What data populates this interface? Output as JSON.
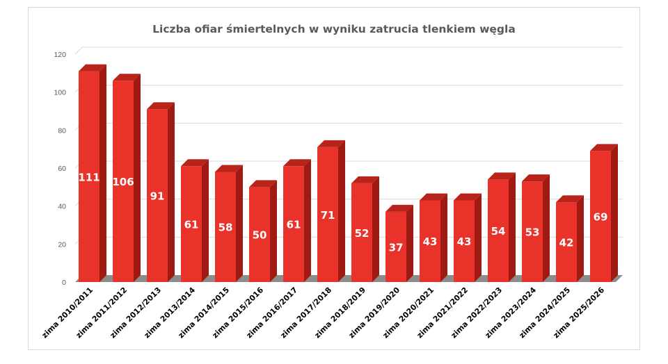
{
  "chart_data": {
    "type": "bar",
    "title": "Liczba ofiar śmiertelnych w wyniku zatrucia tlenkiem węgla",
    "xlabel": "",
    "ylabel": "",
    "ylim": [
      0,
      120
    ],
    "yticks": [
      0,
      20,
      40,
      60,
      80,
      100,
      120
    ],
    "grid": true,
    "style": "3d-column",
    "categories": [
      "zima 2010/2011",
      "zima 2011/2012",
      "zima 2012/2013",
      "zima 2013/2014",
      "zima 2014/2015",
      "zima 2015/2016",
      "zima 2016/2017",
      "zima 2017/2018",
      "zima 2018/2019",
      "zima 2019/2020",
      "zima 2020/2021",
      "zima 2021/2022",
      "zima 2022/2023",
      "zima 2023/2024",
      "zima 2024/2025",
      "zima 2025/2026"
    ],
    "values": [
      111,
      106,
      91,
      61,
      58,
      50,
      61,
      71,
      52,
      37,
      43,
      43,
      54,
      53,
      42,
      69
    ],
    "colors": {
      "front": "#e8322a",
      "side": "#9e1a12",
      "top": "#b8231a",
      "floor": "#8c8c8c"
    }
  }
}
